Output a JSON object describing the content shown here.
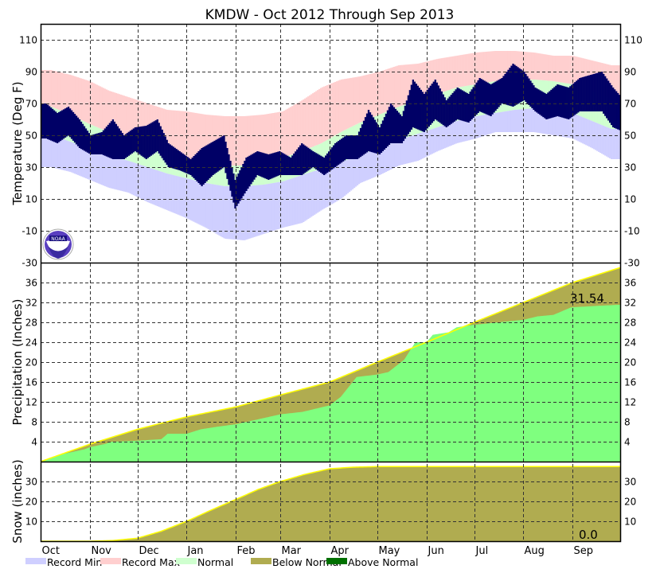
{
  "chart_data": {
    "type": "area",
    "title": "KMDW - Oct 2012 Through Sep 2013",
    "months": [
      "Oct",
      "Nov",
      "Dec",
      "Jan",
      "Feb",
      "Mar",
      "Apr",
      "May",
      "Jun",
      "Jul",
      "Aug",
      "Sep"
    ],
    "month_start_days": [
      0,
      31,
      61,
      92,
      123,
      151,
      182,
      212,
      243,
      273,
      304,
      335
    ],
    "days_in_period": 365,
    "colors": {
      "record_min": "#cfcfff",
      "record_max": "#ffcfcf",
      "normal": "#cfffcf",
      "observed_temp": "#000066",
      "below_normal": "#b0ac50",
      "above_normal": "#007000",
      "observed_precip": "#7fff7f",
      "normal_edge": "#ffff00"
    },
    "panels": {
      "temperature": {
        "ylabel": "Temperature (Deg F)",
        "ylim": [
          -30,
          120
        ],
        "yticks": [
          110,
          90,
          70,
          50,
          30,
          10,
          -10,
          -30
        ],
        "semimonthly_record_max": [
          91,
          88,
          84,
          78,
          74,
          70,
          66,
          65,
          63,
          62,
          62,
          63,
          65,
          72,
          80,
          85,
          87,
          90,
          94,
          95,
          98,
          100,
          102,
          103,
          103,
          102,
          100,
          100,
          97,
          94
        ],
        "semimonthly_record_min": [
          30,
          27,
          22,
          17,
          14,
          8,
          3,
          -2,
          -8,
          -15,
          -16,
          -12,
          -8,
          -5,
          3,
          10,
          20,
          25,
          31,
          34,
          40,
          45,
          48,
          52,
          52,
          52,
          50,
          48,
          42,
          35
        ],
        "semimonthly_normal_high": [
          68,
          63,
          57,
          52,
          48,
          43,
          38,
          34,
          32,
          31,
          31,
          33,
          36,
          40,
          45,
          52,
          58,
          63,
          68,
          72,
          76,
          80,
          82,
          84,
          85,
          85,
          84,
          82,
          78,
          73
        ],
        "semimonthly_normal_low": [
          50,
          46,
          41,
          37,
          34,
          30,
          26,
          23,
          20,
          18,
          18,
          19,
          21,
          25,
          29,
          33,
          38,
          42,
          47,
          51,
          55,
          59,
          62,
          64,
          66,
          67,
          66,
          64,
          59,
          54
        ],
        "weekly_observed_high": [
          70,
          64,
          68,
          60,
          50,
          52,
          60,
          50,
          55,
          56,
          60,
          45,
          40,
          35,
          42,
          46,
          50,
          22,
          36,
          40,
          38,
          40,
          36,
          45,
          40,
          36,
          45,
          50,
          50,
          66,
          55,
          70,
          62,
          85,
          76,
          85,
          72,
          80,
          76,
          86,
          82,
          86,
          95,
          90,
          80,
          76,
          82,
          80,
          86,
          88,
          90,
          80,
          72
        ],
        "weekly_observed_low": [
          48,
          45,
          50,
          42,
          38,
          38,
          35,
          35,
          40,
          35,
          40,
          30,
          28,
          25,
          18,
          25,
          30,
          4,
          15,
          25,
          22,
          25,
          25,
          25,
          30,
          25,
          30,
          35,
          35,
          40,
          38,
          45,
          45,
          55,
          52,
          60,
          55,
          60,
          58,
          65,
          62,
          70,
          68,
          72,
          65,
          60,
          62,
          60,
          65,
          65,
          65,
          55,
          52
        ]
      },
      "precipitation": {
        "ylabel": "Precipitation (Inches)",
        "ylim": [
          0,
          40
        ],
        "yticks": [
          36,
          32,
          28,
          24,
          20,
          16,
          12,
          8,
          4
        ],
        "normal_cumulative": [
          [
            0,
            0
          ],
          [
            31,
            3.5
          ],
          [
            61,
            6.5
          ],
          [
            92,
            9
          ],
          [
            123,
            11
          ],
          [
            151,
            13.4
          ],
          [
            182,
            16
          ],
          [
            212,
            20
          ],
          [
            243,
            24
          ],
          [
            273,
            28
          ],
          [
            304,
            32
          ],
          [
            335,
            36
          ],
          [
            365,
            39
          ]
        ],
        "observed_cumulative": [
          [
            0,
            0
          ],
          [
            14,
            1.5
          ],
          [
            28,
            2.5
          ],
          [
            31,
            2.9
          ],
          [
            40,
            3.5
          ],
          [
            45,
            4
          ],
          [
            61,
            4.2
          ],
          [
            76,
            4.5
          ],
          [
            80,
            5.6
          ],
          [
            92,
            5.6
          ],
          [
            101,
            6.5
          ],
          [
            111,
            7
          ],
          [
            123,
            7.5
          ],
          [
            137,
            8.5
          ],
          [
            151,
            9.5
          ],
          [
            165,
            10
          ],
          [
            182,
            11.3
          ],
          [
            189,
            13
          ],
          [
            199,
            17
          ],
          [
            212,
            17.5
          ],
          [
            219,
            18
          ],
          [
            229,
            20.5
          ],
          [
            236,
            24
          ],
          [
            243,
            24
          ],
          [
            247,
            25.5
          ],
          [
            257,
            26
          ],
          [
            262,
            27
          ],
          [
            273,
            27.5
          ],
          [
            304,
            28.5
          ],
          [
            313,
            29.2
          ],
          [
            323,
            29.5
          ],
          [
            334,
            31
          ],
          [
            350,
            31.3
          ],
          [
            365,
            31.54
          ]
        ],
        "annotation": "31.54"
      },
      "snow": {
        "ylabel": "Snow (inches)",
        "ylim": [
          0,
          40
        ],
        "yticks": [
          30,
          20,
          10
        ],
        "normal_cumulative": [
          [
            0,
            0
          ],
          [
            31,
            0
          ],
          [
            45,
            0.3
          ],
          [
            61,
            1.5
          ],
          [
            76,
            5
          ],
          [
            92,
            10
          ],
          [
            107,
            15.5
          ],
          [
            123,
            21
          ],
          [
            137,
            26
          ],
          [
            151,
            30
          ],
          [
            166,
            33.5
          ],
          [
            182,
            36.4
          ],
          [
            197,
            37.2
          ],
          [
            212,
            37.5
          ],
          [
            365,
            37.5
          ]
        ],
        "observed_total": "0.0"
      }
    },
    "legend": [
      "Record Min",
      "Record Max",
      "Normal",
      "Below Normal",
      "Above Normal"
    ]
  }
}
